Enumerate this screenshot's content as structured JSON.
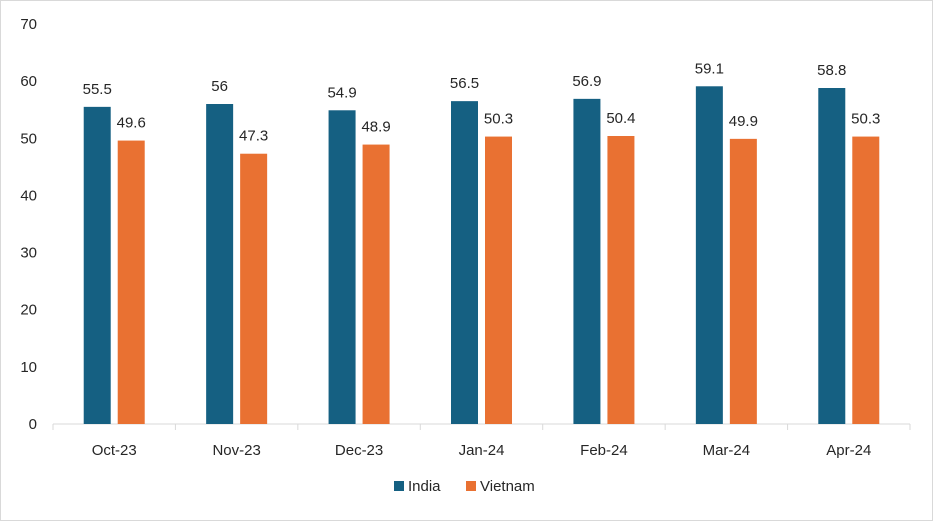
{
  "chart_data": {
    "type": "bar",
    "categories": [
      "Oct-23",
      "Nov-23",
      "Dec-23",
      "Jan-24",
      "Feb-24",
      "Mar-24",
      "Apr-24"
    ],
    "series": [
      {
        "name": "India",
        "color": "#156082",
        "values": [
          55.5,
          56,
          54.9,
          56.5,
          56.9,
          59.1,
          58.8
        ]
      },
      {
        "name": "Vietnam",
        "color": "#E97132",
        "values": [
          49.6,
          47.3,
          48.9,
          50.3,
          50.4,
          49.9,
          50.3
        ]
      }
    ],
    "y_ticks": [
      "0",
      "10",
      "20",
      "30",
      "40",
      "50",
      "60",
      "70"
    ],
    "ylim": [
      0,
      70
    ],
    "data_labels": [
      [
        "55.5",
        "56",
        "54.9",
        "56.5",
        "56.9",
        "59.1",
        "58.8"
      ],
      [
        "49.6",
        "47.3",
        "48.9",
        "50.3",
        "50.4",
        "49.9",
        "50.3"
      ]
    ],
    "grid": false,
    "legend_position": "bottom"
  }
}
